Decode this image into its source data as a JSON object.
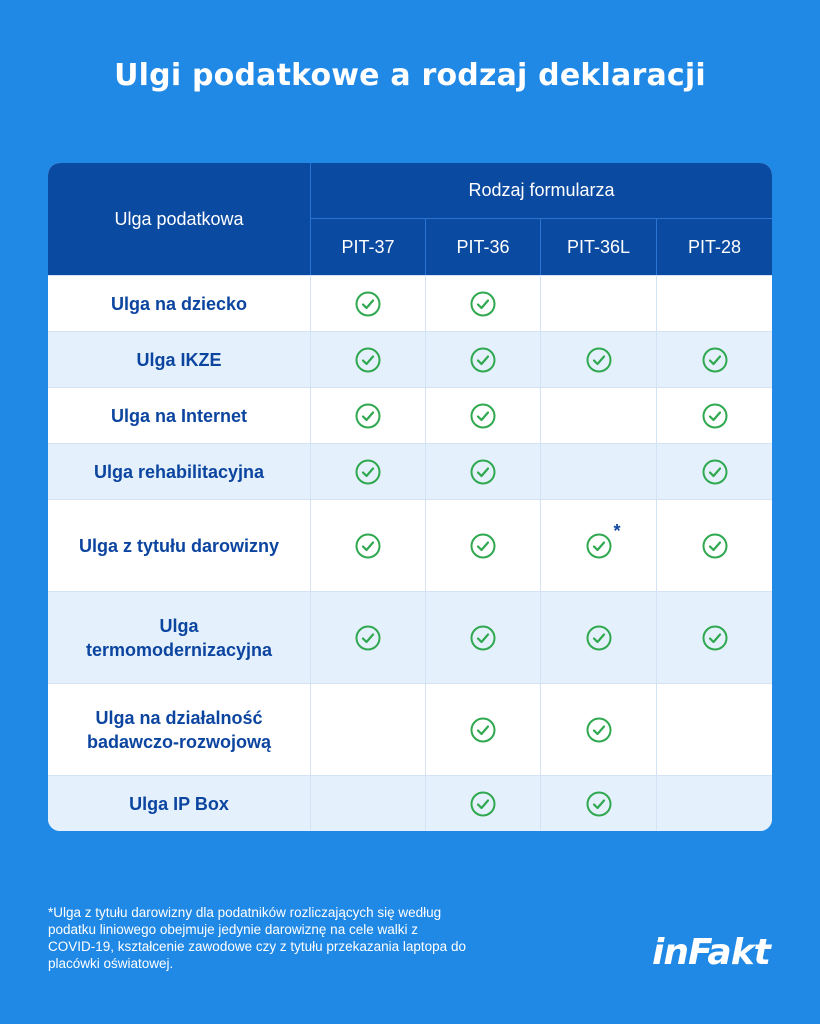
{
  "title": "Ulgi podatkowe a rodzaj deklaracji",
  "table": {
    "corner_header": "Ulga podatkowa",
    "group_header": "Rodzaj formularza",
    "columns": [
      "PIT-37",
      "PIT-36",
      "PIT-36L",
      "PIT-28"
    ],
    "rows": [
      {
        "label": "Ulga na dziecko",
        "checks": [
          true,
          true,
          false,
          false
        ],
        "asterisk": [
          false,
          false,
          false,
          false
        ]
      },
      {
        "label": "Ulga IKZE",
        "checks": [
          true,
          true,
          true,
          true
        ],
        "asterisk": [
          false,
          false,
          false,
          false
        ]
      },
      {
        "label": "Ulga na Internet",
        "checks": [
          true,
          true,
          false,
          true
        ],
        "asterisk": [
          false,
          false,
          false,
          false
        ]
      },
      {
        "label": "Ulga rehabilitacyjna",
        "checks": [
          true,
          true,
          false,
          true
        ],
        "asterisk": [
          false,
          false,
          false,
          false
        ]
      },
      {
        "label": "Ulga z tytułu darowizny",
        "checks": [
          true,
          true,
          true,
          true
        ],
        "asterisk": [
          false,
          false,
          true,
          false
        ]
      },
      {
        "label": "Ulga termomodernizacyjna",
        "checks": [
          true,
          true,
          true,
          true
        ],
        "asterisk": [
          false,
          false,
          false,
          false
        ]
      },
      {
        "label": "Ulga na działalność badawczo-rozwojową",
        "checks": [
          false,
          true,
          true,
          false
        ],
        "asterisk": [
          false,
          false,
          false,
          false
        ]
      },
      {
        "label": "Ulga IP Box",
        "checks": [
          false,
          true,
          true,
          false
        ],
        "asterisk": [
          false,
          false,
          false,
          false
        ]
      }
    ]
  },
  "asterisk_mark": "*",
  "footnote": "*Ulga z tytułu darowizny dla podatników rozliczających się według podatku liniowego obejmuje jedynie darowiznę na cele walki z COVID-19, kształcenie zawodowe czy z tytułu przekazania laptopa do placówki oświatowej.",
  "logo": "inFakt",
  "colors": {
    "background": "#2089e6",
    "header": "#0b4aa1",
    "row_alt": "#e4f1fc",
    "label_text": "#0c45a0",
    "check": "#2fa84f"
  },
  "icons": {
    "check": "check-circle-icon"
  }
}
